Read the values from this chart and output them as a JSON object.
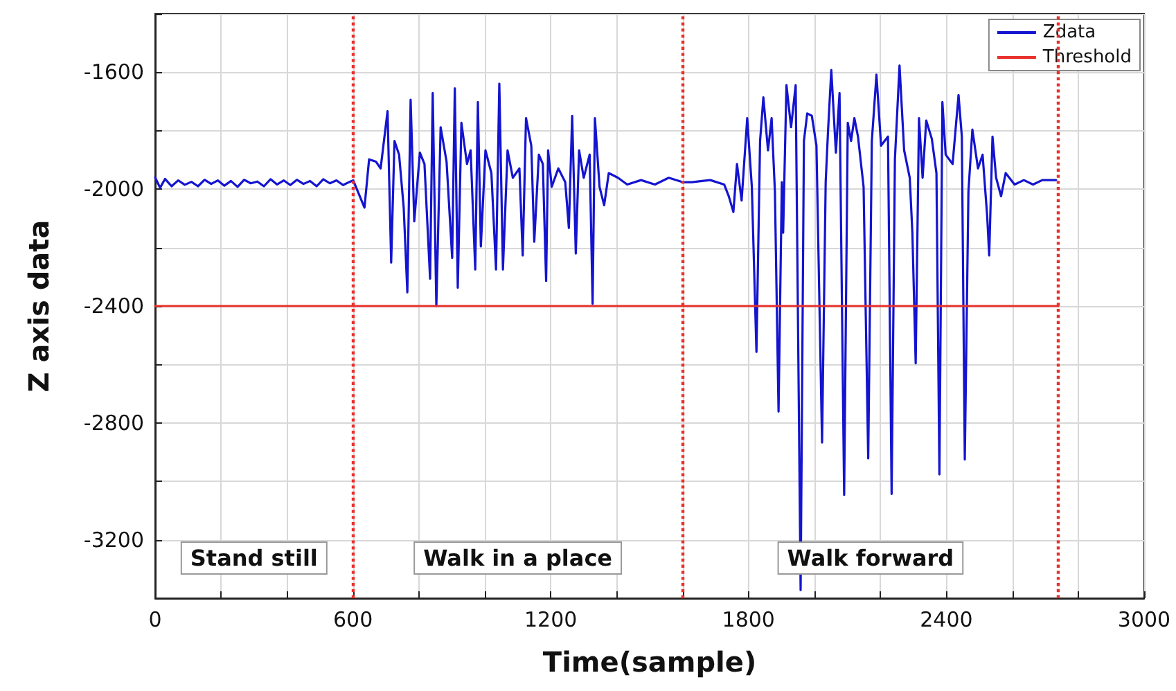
{
  "chart_data": {
    "type": "line",
    "xlabel": "Time(sample)",
    "ylabel": "Z axis data",
    "xlim": [
      0,
      3000
    ],
    "ylim": [
      -3400,
      -1400
    ],
    "xticks": [
      0,
      {
        "value": 200,
        "label": null
      },
      {
        "value": 400,
        "label": null
      },
      600,
      {
        "value": 800,
        "label": null
      },
      {
        "value": 1000,
        "label": null
      },
      1200,
      {
        "value": 1400,
        "label": null
      },
      {
        "value": 1600,
        "label": null
      },
      1800,
      {
        "value": 2000,
        "label": null
      },
      {
        "value": 2200,
        "label": null
      },
      2400,
      {
        "value": 2600,
        "label": null
      },
      {
        "value": 2800,
        "label": null
      },
      3000
    ],
    "yticks": [
      {
        "value": -3400,
        "label": null
      },
      -3200,
      {
        "value": -3000,
        "label": null
      },
      -2800,
      {
        "value": -2600,
        "label": null
      },
      -2400,
      {
        "value": -2200,
        "label": null
      },
      -2000,
      {
        "value": -1800,
        "label": null
      },
      -1600,
      {
        "value": -1400,
        "label": null
      }
    ],
    "grid": true,
    "legend": "top right",
    "marker": "none",
    "series": [
      {
        "name": "Zdata",
        "color": "#1414d0",
        "x": [
          0,
          15,
          30,
          50,
          70,
          90,
          110,
          130,
          150,
          170,
          190,
          210,
          230,
          250,
          270,
          290,
          310,
          330,
          350,
          370,
          390,
          410,
          430,
          450,
          470,
          490,
          510,
          530,
          550,
          570,
          590,
          601,
          635,
          649,
          670,
          684,
          705,
          716,
          726,
          740,
          754,
          765,
          775,
          786,
          803,
          817,
          834,
          842,
          853,
          866,
          884,
          901,
          909,
          918,
          929,
          946,
          957,
          971,
          979,
          988,
          1002,
          1020,
          1034,
          1044,
          1055,
          1069,
          1085,
          1105,
          1115,
          1125,
          1141,
          1150,
          1164,
          1176,
          1186,
          1192,
          1203,
          1223,
          1244,
          1255,
          1265,
          1276,
          1286,
          1300,
          1318,
          1327,
          1334,
          1348,
          1362,
          1376,
          1404,
          1432,
          1474,
          1516,
          1558,
          1600,
          1628,
          1684,
          1726,
          1740,
          1754,
          1765,
          1779,
          1796,
          1810,
          1824,
          1835,
          1845,
          1859,
          1870,
          1880,
          1891,
          1901,
          1905,
          1915,
          1929,
          1943,
          1958,
          1968,
          1978,
          1992,
          2006,
          2023,
          2034,
          2041,
          2051,
          2065,
          2076,
          2090,
          2101,
          2111,
          2121,
          2132,
          2149,
          2163,
          2174,
          2188,
          2202,
          2223,
          2234,
          2244,
          2258,
          2272,
          2289,
          2297,
          2307,
          2317,
          2328,
          2339,
          2356,
          2370,
          2379,
          2388,
          2398,
          2419,
          2437,
          2447,
          2456,
          2467,
          2479,
          2496,
          2510,
          2524,
          2530,
          2540,
          2551,
          2566,
          2580,
          2607,
          2635,
          2663,
          2691,
          2733
        ],
        "values": [
          -1960,
          -1995,
          -1965,
          -1990,
          -1970,
          -1985,
          -1975,
          -1990,
          -1968,
          -1982,
          -1970,
          -1988,
          -1972,
          -1992,
          -1968,
          -1980,
          -1974,
          -1990,
          -1966,
          -1984,
          -1970,
          -1986,
          -1968,
          -1982,
          -1972,
          -1990,
          -1966,
          -1980,
          -1970,
          -1986,
          -1975,
          -1970,
          -2063,
          -1898,
          -1906,
          -1929,
          -1733,
          -2251,
          -1835,
          -1882,
          -2063,
          -2353,
          -1694,
          -2110,
          -1875,
          -1914,
          -2306,
          -1671,
          -2400,
          -1788,
          -1906,
          -2235,
          -1655,
          -2337,
          -1773,
          -1914,
          -1867,
          -2275,
          -1702,
          -2196,
          -1867,
          -1945,
          -2275,
          -1639,
          -2275,
          -1867,
          -1961,
          -1929,
          -2227,
          -1757,
          -1851,
          -2180,
          -1882,
          -1914,
          -2314,
          -1867,
          -1992,
          -1929,
          -1976,
          -2133,
          -1749,
          -2220,
          -1867,
          -1961,
          -1882,
          -2392,
          -1757,
          -1992,
          -2055,
          -1945,
          -1961,
          -1984,
          -1969,
          -1984,
          -1961,
          -1976,
          -1976,
          -1969,
          -1984,
          -2024,
          -2078,
          -1914,
          -2039,
          -1757,
          -1992,
          -2557,
          -1835,
          -1686,
          -1867,
          -1757,
          -2008,
          -2761,
          -1976,
          -2149,
          -1644,
          -1788,
          -1644,
          -3372,
          -1835,
          -1741,
          -1749,
          -1851,
          -2867,
          -1976,
          -1804,
          -1592,
          -1875,
          -1671,
          -3046,
          -1773,
          -1835,
          -1757,
          -1820,
          -1992,
          -2921,
          -1835,
          -1608,
          -1851,
          -1820,
          -3043,
          -1898,
          -1577,
          -1867,
          -1961,
          -2149,
          -2596,
          -1757,
          -1961,
          -1765,
          -1828,
          -1945,
          -2976,
          -1702,
          -1882,
          -1914,
          -1678,
          -1820,
          -2925,
          -2008,
          -1796,
          -1929,
          -1882,
          -2094,
          -2227,
          -1820,
          -1961,
          -2024,
          -1945,
          -1984,
          -1969,
          -1984,
          -1969,
          -1969
        ]
      },
      {
        "name": "Threshold",
        "color": "#e8302c",
        "x": [
          0,
          2740
        ],
        "values": [
          -2400,
          -2400
        ]
      }
    ],
    "ref_lines": [
      {
        "axis": "x",
        "value": 600,
        "color": "#e8302c",
        "line_style": "dotted"
      },
      {
        "axis": "x",
        "value": 1600,
        "color": "#e8302c",
        "line_style": "dotted"
      },
      {
        "axis": "x",
        "value": 2740,
        "color": "#e8302c",
        "line_style": "dotted"
      }
    ],
    "annotations": [
      "Stand still",
      "Walk in a place",
      "Walk forward"
    ]
  }
}
